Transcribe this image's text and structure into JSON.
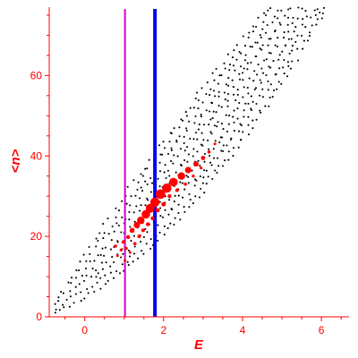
{
  "chart_data": {
    "type": "scatter",
    "title": "",
    "xlabel": "E",
    "ylabel": "<n>",
    "xlim": [
      -0.9,
      6.7
    ],
    "ylim": [
      0,
      77
    ],
    "xticks": [
      0,
      2,
      4,
      6
    ],
    "yticks": [
      0,
      20,
      40,
      60
    ],
    "grid": false,
    "legend": "none",
    "axis_color": "#ff0000",
    "vertical_lines": [
      {
        "x": 1.02,
        "color": "#d400d4"
      },
      {
        "x": 1.78,
        "color": "#0000ee"
      }
    ],
    "series": [
      {
        "color": "#ff0000",
        "points": [
          {
            "x": 0.78,
            "y": 17.6,
            "s": 1.8
          },
          {
            "x": 0.83,
            "y": 15.2,
            "s": 1.5
          },
          {
            "x": 0.92,
            "y": 16.6,
            "s": 1.6
          },
          {
            "x": 0.98,
            "y": 18.6,
            "s": 2.0
          },
          {
            "x": 1.02,
            "y": 14.0,
            "s": 1.5
          },
          {
            "x": 1.05,
            "y": 17.0,
            "s": 1.8
          },
          {
            "x": 1.1,
            "y": 19.8,
            "s": 2.2
          },
          {
            "x": 1.15,
            "y": 16.0,
            "s": 1.5
          },
          {
            "x": 1.2,
            "y": 21.5,
            "s": 2.8
          },
          {
            "x": 1.27,
            "y": 18.2,
            "s": 1.8
          },
          {
            "x": 1.32,
            "y": 22.8,
            "s": 3.5
          },
          {
            "x": 1.38,
            "y": 20.0,
            "s": 2.0
          },
          {
            "x": 1.42,
            "y": 24.0,
            "s": 4.2
          },
          {
            "x": 1.48,
            "y": 21.5,
            "s": 2.0
          },
          {
            "x": 1.55,
            "y": 25.5,
            "s": 4.8
          },
          {
            "x": 1.6,
            "y": 23.0,
            "s": 2.2
          },
          {
            "x": 1.66,
            "y": 27.0,
            "s": 5.0
          },
          {
            "x": 1.72,
            "y": 24.5,
            "s": 2.2
          },
          {
            "x": 1.78,
            "y": 28.5,
            "s": 5.2
          },
          {
            "x": 1.85,
            "y": 26.5,
            "s": 2.3
          },
          {
            "x": 1.92,
            "y": 30.5,
            "s": 5.4
          },
          {
            "x": 2.0,
            "y": 28.0,
            "s": 2.5
          },
          {
            "x": 2.08,
            "y": 32.0,
            "s": 5.2
          },
          {
            "x": 2.15,
            "y": 30.0,
            "s": 2.2
          },
          {
            "x": 2.25,
            "y": 33.5,
            "s": 4.8
          },
          {
            "x": 2.34,
            "y": 31.5,
            "s": 2.0
          },
          {
            "x": 2.45,
            "y": 35.0,
            "s": 4.2
          },
          {
            "x": 2.55,
            "y": 33.0,
            "s": 1.8
          },
          {
            "x": 2.62,
            "y": 36.5,
            "s": 3.6
          },
          {
            "x": 2.75,
            "y": 35.0,
            "s": 1.7
          },
          {
            "x": 2.82,
            "y": 38.0,
            "s": 3.0
          },
          {
            "x": 2.95,
            "y": 37.0,
            "s": 1.6
          },
          {
            "x": 3.0,
            "y": 39.5,
            "s": 2.4
          },
          {
            "x": 3.15,
            "y": 41.0,
            "s": 1.8
          },
          {
            "x": 3.3,
            "y": 43.0,
            "s": 1.5
          }
        ]
      },
      {
        "color": "#000000",
        "points": []
      }
    ]
  }
}
